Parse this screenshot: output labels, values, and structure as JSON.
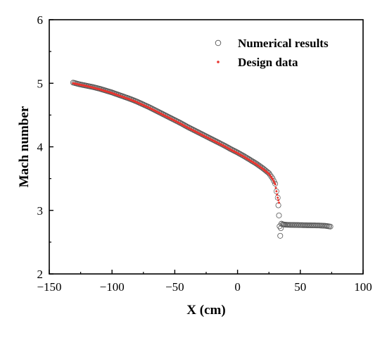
{
  "chart_data": {
    "type": "scatter",
    "title": "",
    "xlabel": "X (cm)",
    "ylabel": "Mach number",
    "xlim": [
      -150,
      100
    ],
    "ylim": [
      2,
      6
    ],
    "x_ticks": [
      -150,
      -100,
      -50,
      0,
      50,
      100
    ],
    "y_ticks": [
      2,
      3,
      4,
      5,
      6
    ],
    "x_tick_labels": [
      "−150",
      "−100",
      "−50",
      "0",
      "50",
      "100"
    ],
    "y_tick_labels": [
      "2",
      "3",
      "4",
      "5",
      "6"
    ],
    "grid": false,
    "legend_position": "top-right",
    "legend": [
      {
        "label": "Numerical results",
        "marker": "open-circle",
        "color": "#555555"
      },
      {
        "label": "Design data",
        "marker": "dot",
        "color": "#e8352f"
      }
    ],
    "series": [
      {
        "name": "Numerical results",
        "marker": "open-circle",
        "color": "#555555",
        "x": [
          -131,
          -125,
          -120,
          -115,
          -110,
          -105,
          -100,
          -95,
          -90,
          -85,
          -80,
          -75,
          -70,
          -65,
          -60,
          -55,
          -50,
          -45,
          -40,
          -35,
          -30,
          -25,
          -20,
          -15,
          -10,
          -5,
          0,
          5,
          10,
          15,
          20,
          25,
          28,
          30,
          31,
          32,
          32.5,
          33,
          33.5,
          34,
          34.5,
          35,
          36,
          38,
          40,
          45,
          50,
          55,
          60,
          65,
          70,
          74
        ],
        "y": [
          5.01,
          4.98,
          4.96,
          4.94,
          4.915,
          4.885,
          4.855,
          4.82,
          4.785,
          4.75,
          4.71,
          4.665,
          4.62,
          4.57,
          4.52,
          4.47,
          4.42,
          4.37,
          4.315,
          4.265,
          4.215,
          4.165,
          4.115,
          4.065,
          4.015,
          3.96,
          3.91,
          3.855,
          3.795,
          3.735,
          3.665,
          3.585,
          3.5,
          3.42,
          3.3,
          3.2,
          3.08,
          2.92,
          2.75,
          2.6,
          2.72,
          2.79,
          2.78,
          2.775,
          2.772,
          2.77,
          2.768,
          2.766,
          2.764,
          2.762,
          2.757,
          2.745
        ]
      },
      {
        "name": "Design data",
        "marker": "dot",
        "color": "#e8352f",
        "x": [
          -131,
          -125,
          -120,
          -115,
          -110,
          -105,
          -100,
          -95,
          -90,
          -85,
          -80,
          -75,
          -70,
          -65,
          -60,
          -55,
          -50,
          -45,
          -40,
          -35,
          -30,
          -25,
          -20,
          -15,
          -10,
          -5,
          0,
          5,
          10,
          15,
          20,
          25,
          28,
          30,
          31,
          32,
          33
        ],
        "y": [
          5.0,
          4.975,
          4.955,
          4.93,
          4.905,
          4.875,
          4.845,
          4.81,
          4.775,
          4.74,
          4.7,
          4.655,
          4.61,
          4.56,
          4.51,
          4.46,
          4.41,
          4.36,
          4.305,
          4.255,
          4.205,
          4.155,
          4.105,
          4.055,
          4.005,
          3.95,
          3.9,
          3.845,
          3.785,
          3.725,
          3.655,
          3.575,
          3.49,
          3.41,
          3.3,
          3.2,
          3.12
        ]
      }
    ]
  }
}
